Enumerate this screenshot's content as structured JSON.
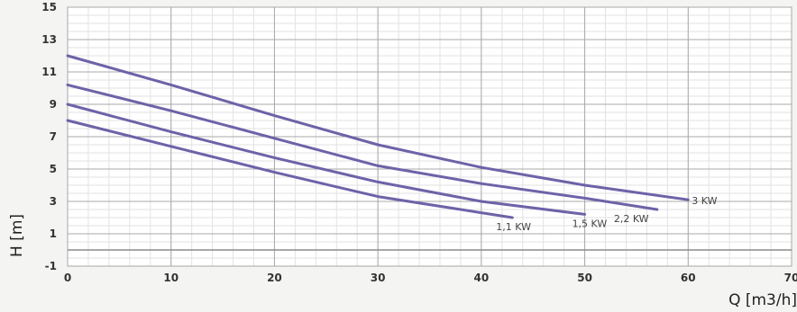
{
  "chart_data": {
    "type": "line",
    "xlabel": "Q   [m3/h]",
    "ylabel": "H [m]",
    "xlim": [
      0,
      70
    ],
    "ylim": [
      -1,
      15
    ],
    "x_ticks": [
      "0",
      "10",
      "20",
      "30",
      "40",
      "50",
      "60",
      "70"
    ],
    "y_ticks": [
      "-1",
      "1",
      "3",
      "5",
      "7",
      "9",
      "11",
      "13",
      "15"
    ],
    "grid": true,
    "series": [
      {
        "name": "3 KW",
        "x": [
          0,
          10,
          20,
          30,
          40,
          50,
          60
        ],
        "y": [
          12.0,
          10.2,
          8.3,
          6.5,
          5.1,
          4.0,
          3.1
        ]
      },
      {
        "name": "2,2 KW",
        "x": [
          0,
          10,
          20,
          30,
          40,
          50,
          57
        ],
        "y": [
          10.2,
          8.6,
          6.9,
          5.2,
          4.1,
          3.2,
          2.5
        ]
      },
      {
        "name": "1,5 KW",
        "x": [
          0,
          10,
          20,
          30,
          40,
          50
        ],
        "y": [
          9.0,
          7.3,
          5.7,
          4.2,
          3.0,
          2.2
        ]
      },
      {
        "name": "1,1 KW",
        "x": [
          0,
          10,
          20,
          30,
          40,
          43
        ],
        "y": [
          8.0,
          6.4,
          4.8,
          3.3,
          2.3,
          2.0
        ]
      }
    ],
    "series_color": "#6e62a8"
  }
}
